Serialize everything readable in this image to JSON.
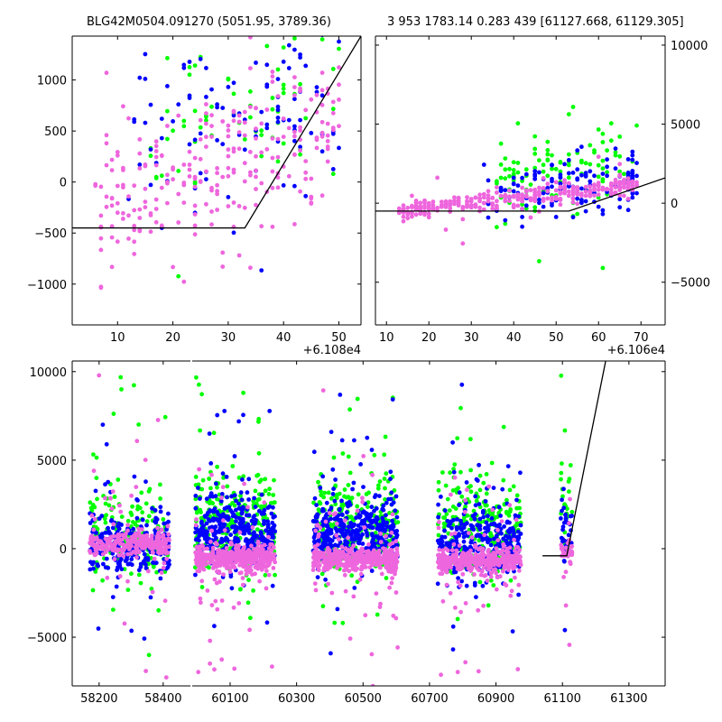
{
  "titles": {
    "left": "BLG42M0504.091270 (5051.95, 3789.36)",
    "right": "3 953 1783.14 0.283 439 [61127.668, 61129.305]"
  },
  "colors": {
    "green": "#00ff00",
    "blue": "#0000ff",
    "pink": "#ee66dd",
    "line": "#000000"
  },
  "chart_data": [
    {
      "type": "scatter",
      "name": "zoom-top-left",
      "x_offset_label": "+6.108e4",
      "xlim": [
        1.8,
        54
      ],
      "ylim": [
        -1400,
        1430
      ],
      "xticks": [
        10,
        20,
        30,
        40,
        50
      ],
      "yticks": [
        -1000,
        -500,
        0,
        500,
        1000
      ],
      "ytick_side": "left",
      "model_line": [
        [
          1.8,
          -450
        ],
        [
          33,
          -450
        ],
        [
          54,
          1430
        ]
      ],
      "clusters": [
        {
          "series": "green",
          "x": [
            16,
            50
          ],
          "y_center": 500,
          "y_spread": 450,
          "trend": 18,
          "n": 70
        },
        {
          "series": "blue",
          "x": [
            12,
            50
          ],
          "y_center": 300,
          "y_spread": 450,
          "trend": 16,
          "n": 110
        },
        {
          "series": "pink",
          "x": [
            6,
            50
          ],
          "y_center": -350,
          "y_spread": 330,
          "trend": 22,
          "n": 260
        }
      ]
    },
    {
      "type": "scatter",
      "name": "zoom-top-right",
      "x_offset_label": "+6.106e4",
      "xlim": [
        7.4,
        75.7
      ],
      "ylim": [
        -7700,
        10570
      ],
      "xticks": [
        10,
        20,
        30,
        40,
        50,
        60,
        70
      ],
      "yticks": [
        -5000,
        0,
        5000,
        10000
      ],
      "ytick_side": "right",
      "model_line": [
        [
          7.4,
          -500
        ],
        [
          53,
          -500
        ],
        [
          75.7,
          1600
        ]
      ],
      "clusters": [
        {
          "series": "green",
          "x": [
            36,
            69
          ],
          "y_center": 1200,
          "y_spread": 1500,
          "trend": 40,
          "n": 110
        },
        {
          "series": "blue",
          "x": [
            33,
            69
          ],
          "y_center": 500,
          "y_spread": 900,
          "trend": 25,
          "n": 140
        },
        {
          "series": "pink",
          "x": [
            13,
            69
          ],
          "y_center": -500,
          "y_spread": 300,
          "trend": 30,
          "n": 330
        }
      ]
    },
    {
      "type": "scatter",
      "name": "full-lightcurve",
      "broken_axis": true,
      "segments": [
        {
          "xlim": [
            58116,
            58485
          ],
          "xticks": [
            58200,
            58400
          ]
        },
        {
          "xlim": [
            59986,
            61409
          ],
          "xticks": [
            60100,
            60300,
            60500,
            60700,
            60900,
            61100,
            61300
          ]
        }
      ],
      "ylim": [
        -7750,
        10600
      ],
      "yticks": [
        -5000,
        0,
        5000,
        10000
      ],
      "model_line": [
        [
          61040,
          -400
        ],
        [
          61113,
          -400
        ],
        [
          61230,
          10600
        ]
      ],
      "seasons": [
        {
          "x": [
            58170,
            58420
          ],
          "pink_center": 300,
          "blue_center": 200,
          "green_center": 800,
          "n": 700
        },
        {
          "x": [
            59995,
            60235
          ],
          "pink_center": -500,
          "blue_center": 800,
          "green_center": 1500,
          "n": 1100
        },
        {
          "x": [
            60350,
            60605
          ],
          "pink_center": -550,
          "blue_center": 900,
          "green_center": 1200,
          "n": 1100
        },
        {
          "x": [
            60725,
            60975
          ],
          "pink_center": -650,
          "blue_center": 300,
          "green_center": 1200,
          "n": 1000
        },
        {
          "x": [
            61095,
            61130
          ],
          "pink_center": -200,
          "blue_center": 800,
          "green_center": 2500,
          "n": 90
        }
      ]
    }
  ]
}
